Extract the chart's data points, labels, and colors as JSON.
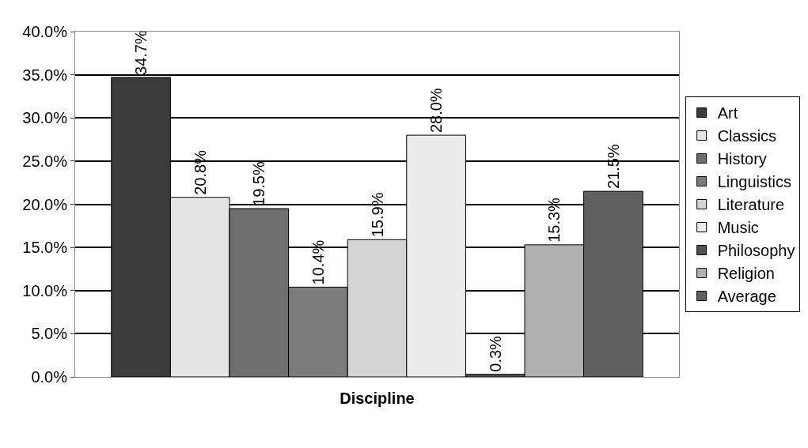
{
  "chart_data": {
    "type": "bar",
    "xlabel": "Discipline",
    "categories": [
      null
    ],
    "series": [
      {
        "name": "Art",
        "color": "#3c3c3c",
        "values": [
          34.7
        ],
        "value_labels": [
          "34.7%"
        ]
      },
      {
        "name": "Classics",
        "color": "#e4e4e4",
        "values": [
          20.8
        ],
        "value_labels": [
          "20.8%"
        ]
      },
      {
        "name": "History",
        "color": "#6e6e6e",
        "values": [
          19.5
        ],
        "value_labels": [
          "19.5%"
        ]
      },
      {
        "name": "Linguistics",
        "color": "#7c7c7c",
        "values": [
          10.4
        ],
        "value_labels": [
          "10.4%"
        ]
      },
      {
        "name": "Literature",
        "color": "#d4d4d4",
        "values": [
          15.9
        ],
        "value_labels": [
          "15.9%"
        ]
      },
      {
        "name": "Music",
        "color": "#ececec",
        "values": [
          28.0
        ],
        "value_labels": [
          "28.0%"
        ]
      },
      {
        "name": "Philosophy",
        "color": "#505050",
        "values": [
          0.3
        ],
        "value_labels": [
          "0.3%"
        ]
      },
      {
        "name": "Religion",
        "color": "#b0b0b0",
        "values": [
          15.3
        ],
        "value_labels": [
          "15.3%"
        ]
      },
      {
        "name": "Average",
        "color": "#606060",
        "values": [
          21.5
        ],
        "value_labels": [
          "21.5%"
        ]
      }
    ],
    "ylim": [
      0,
      40
    ],
    "yticks": [
      {
        "value": 0,
        "label": "0.0%"
      },
      {
        "value": 5,
        "label": "5.0%"
      },
      {
        "value": 10,
        "label": "10.0%"
      },
      {
        "value": 15,
        "label": "15.0%"
      },
      {
        "value": 20,
        "label": "20.0%"
      },
      {
        "value": 25,
        "label": "25.0%"
      },
      {
        "value": 30,
        "label": "30.0%"
      },
      {
        "value": 35,
        "label": "35.0%"
      },
      {
        "value": 40,
        "label": "40.0%"
      }
    ],
    "grid": "y",
    "legend": "right"
  }
}
